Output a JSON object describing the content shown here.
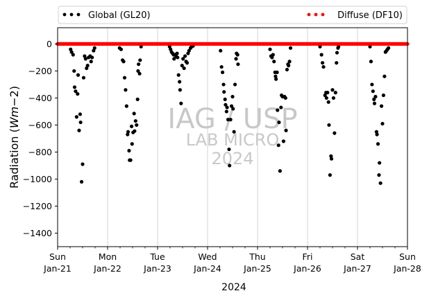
{
  "chart_data": {
    "type": "scatter",
    "xlabel": "2024",
    "ylabel_main": "Radiation (",
    "ylabel_unit_italic": "Wm",
    "ylabel_unit_rest": "−2)",
    "ylim": [
      -1500,
      120
    ],
    "yticks": [
      0,
      -200,
      -400,
      -600,
      -800,
      -1000,
      -1200,
      -1400
    ],
    "xlim": [
      0,
      7
    ],
    "xticks": [
      {
        "x": 0,
        "day": "Sun",
        "date": "Jan-21"
      },
      {
        "x": 1,
        "day": "Mon",
        "date": "Jan-22"
      },
      {
        "x": 2,
        "day": "Tue",
        "date": "Jan-23"
      },
      {
        "x": 3,
        "day": "Wed",
        "date": "Jan-24"
      },
      {
        "x": 4,
        "day": "Thu",
        "date": "Jan-25"
      },
      {
        "x": 5,
        "day": "Fri",
        "date": "Jan-26"
      },
      {
        "x": 6,
        "day": "Sat",
        "date": "Jan-27"
      },
      {
        "x": 7,
        "day": "Sun",
        "date": "Jan-28"
      }
    ],
    "grid": "vertical",
    "legend": "top",
    "watermark": [
      "IAG / USP",
      "LAB MICRO",
      "2024"
    ],
    "colors": {
      "global": "#000000",
      "diffuse": "#ff0000",
      "watermark": "#c8c8c8",
      "grid": "#c8c8c8"
    },
    "series": [
      {
        "name": "Global (GL20)",
        "color": "#000000",
        "points": [
          [
            0.26,
            -40
          ],
          [
            0.28,
            -60
          ],
          [
            0.31,
            -80
          ],
          [
            0.33,
            -200
          ],
          [
            0.34,
            -320
          ],
          [
            0.36,
            -350
          ],
          [
            0.38,
            -540
          ],
          [
            0.4,
            -370
          ],
          [
            0.41,
            -230
          ],
          [
            0.43,
            -640
          ],
          [
            0.45,
            -520
          ],
          [
            0.46,
            -580
          ],
          [
            0.48,
            -1020
          ],
          [
            0.5,
            -890
          ],
          [
            0.52,
            -250
          ],
          [
            0.54,
            -90
          ],
          [
            0.56,
            -110
          ],
          [
            0.58,
            -180
          ],
          [
            0.6,
            -160
          ],
          [
            0.62,
            -100
          ],
          [
            0.65,
            -90
          ],
          [
            0.67,
            -130
          ],
          [
            0.69,
            -100
          ],
          [
            0.72,
            -50
          ],
          [
            0.74,
            -30
          ],
          [
            1.24,
            -30
          ],
          [
            1.27,
            -40
          ],
          [
            1.3,
            -120
          ],
          [
            1.32,
            -130
          ],
          [
            1.34,
            -250
          ],
          [
            1.36,
            -340
          ],
          [
            1.38,
            -460
          ],
          [
            1.4,
            -670
          ],
          [
            1.41,
            -650
          ],
          [
            1.43,
            -790
          ],
          [
            1.44,
            -860
          ],
          [
            1.46,
            -860
          ],
          [
            1.48,
            -610
          ],
          [
            1.49,
            -740
          ],
          [
            1.51,
            -655
          ],
          [
            1.53,
            -515
          ],
          [
            1.54,
            -645
          ],
          [
            1.56,
            -570
          ],
          [
            1.58,
            -600
          ],
          [
            1.6,
            -410
          ],
          [
            1.61,
            -200
          ],
          [
            1.62,
            -150
          ],
          [
            1.64,
            -220
          ],
          [
            1.65,
            -120
          ],
          [
            1.67,
            -20
          ],
          [
            2.24,
            -20
          ],
          [
            2.26,
            -40
          ],
          [
            2.28,
            -60
          ],
          [
            2.3,
            -70
          ],
          [
            2.32,
            -80
          ],
          [
            2.33,
            -110
          ],
          [
            2.35,
            -80
          ],
          [
            2.37,
            -90
          ],
          [
            2.39,
            -70
          ],
          [
            2.4,
            -100
          ],
          [
            2.42,
            -230
          ],
          [
            2.44,
            -280
          ],
          [
            2.45,
            -340
          ],
          [
            2.47,
            -440
          ],
          [
            2.49,
            -160
          ],
          [
            2.51,
            -110
          ],
          [
            2.53,
            -180
          ],
          [
            2.55,
            -90
          ],
          [
            2.57,
            -130
          ],
          [
            2.59,
            -140
          ],
          [
            2.61,
            -70
          ],
          [
            2.63,
            -50
          ],
          [
            2.66,
            -30
          ],
          [
            2.68,
            -20
          ],
          [
            2.71,
            -15
          ],
          [
            3.26,
            -50
          ],
          [
            3.28,
            -170
          ],
          [
            3.3,
            -210
          ],
          [
            3.32,
            -300
          ],
          [
            3.33,
            -355
          ],
          [
            3.35,
            -410
          ],
          [
            3.36,
            -450
          ],
          [
            3.38,
            -500
          ],
          [
            3.39,
            -470
          ],
          [
            3.41,
            -560
          ],
          [
            3.43,
            -780
          ],
          [
            3.44,
            -900
          ],
          [
            3.46,
            -560
          ],
          [
            3.48,
            -460
          ],
          [
            3.5,
            -390
          ],
          [
            3.51,
            -480
          ],
          [
            3.53,
            -650
          ],
          [
            3.55,
            -300
          ],
          [
            3.57,
            -110
          ],
          [
            3.58,
            -70
          ],
          [
            3.6,
            -80
          ],
          [
            3.61,
            -150
          ],
          [
            4.25,
            -40
          ],
          [
            4.27,
            -90
          ],
          [
            4.29,
            -100
          ],
          [
            4.31,
            -80
          ],
          [
            4.33,
            -130
          ],
          [
            4.35,
            -210
          ],
          [
            4.36,
            -240
          ],
          [
            4.37,
            -260
          ],
          [
            4.39,
            -210
          ],
          [
            4.4,
            -490
          ],
          [
            4.42,
            -750
          ],
          [
            4.43,
            -580
          ],
          [
            4.45,
            -940
          ],
          [
            4.47,
            -470
          ],
          [
            4.48,
            -380
          ],
          [
            4.5,
            -390
          ],
          [
            4.52,
            -720
          ],
          [
            4.54,
            -390
          ],
          [
            4.56,
            -400
          ],
          [
            4.57,
            -640
          ],
          [
            4.59,
            -190
          ],
          [
            4.61,
            -150
          ],
          [
            4.62,
            -160
          ],
          [
            4.64,
            -130
          ],
          [
            4.66,
            -30
          ],
          [
            5.25,
            -20
          ],
          [
            5.28,
            -80
          ],
          [
            5.3,
            -140
          ],
          [
            5.32,
            -170
          ],
          [
            5.35,
            -380
          ],
          [
            5.37,
            -360
          ],
          [
            5.38,
            -400
          ],
          [
            5.4,
            -360
          ],
          [
            5.42,
            -430
          ],
          [
            5.43,
            -600
          ],
          [
            5.45,
            -970
          ],
          [
            5.47,
            -830
          ],
          [
            5.48,
            -850
          ],
          [
            5.5,
            -340
          ],
          [
            5.52,
            -400
          ],
          [
            5.54,
            -660
          ],
          [
            5.56,
            -360
          ],
          [
            5.58,
            -140
          ],
          [
            5.59,
            -65
          ],
          [
            5.61,
            -30
          ],
          [
            5.62,
            -20
          ],
          [
            6.25,
            -20
          ],
          [
            6.27,
            -130
          ],
          [
            6.29,
            -300
          ],
          [
            6.31,
            -350
          ],
          [
            6.33,
            -410
          ],
          [
            6.34,
            -440
          ],
          [
            6.36,
            -390
          ],
          [
            6.38,
            -650
          ],
          [
            6.39,
            -670
          ],
          [
            6.41,
            -740
          ],
          [
            6.43,
            -970
          ],
          [
            6.44,
            -880
          ],
          [
            6.46,
            -1030
          ],
          [
            6.48,
            -460
          ],
          [
            6.5,
            -590
          ],
          [
            6.52,
            -380
          ],
          [
            6.54,
            -240
          ],
          [
            6.56,
            -60
          ],
          [
            6.58,
            -50
          ],
          [
            6.6,
            -40
          ],
          [
            6.62,
            -30
          ]
        ]
      },
      {
        "name": "Diffuse (DF10)",
        "color": "#ff0000",
        "x_start": 0,
        "x_end": 7,
        "step": 0.0125,
        "y": 0
      }
    ]
  }
}
